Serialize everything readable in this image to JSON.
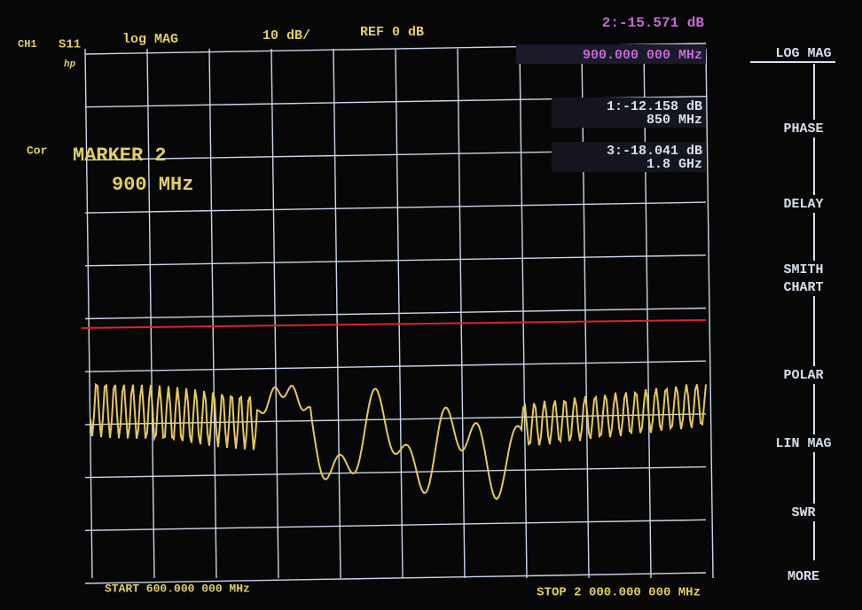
{
  "header": {
    "channel": "CH1",
    "parameter": "S11",
    "format": "log MAG",
    "scale": "10 dB/",
    "reference": "REF 0 dB",
    "logo": "hp",
    "correction": "Cor"
  },
  "active_marker": {
    "readout": "2:-15.571 dB",
    "frequency": "900.000 000 MHz",
    "title": "MARKER 2",
    "value": "900 MHz"
  },
  "markers": [
    {
      "readout": "1:-12.158 dB",
      "frequency": "850 MHz"
    },
    {
      "readout": "3:-18.041 dB",
      "frequency": "1.8 GHz"
    }
  ],
  "sweep": {
    "start": "START 600.000 000 MHz",
    "stop": "STOP 2 000.000 000 MHz"
  },
  "softkeys": [
    "LOG MAG",
    "PHASE",
    "DELAY",
    "SMITH",
    "CHART",
    "POLAR",
    "LIN MAG",
    "SWR",
    "MORE"
  ]
}
